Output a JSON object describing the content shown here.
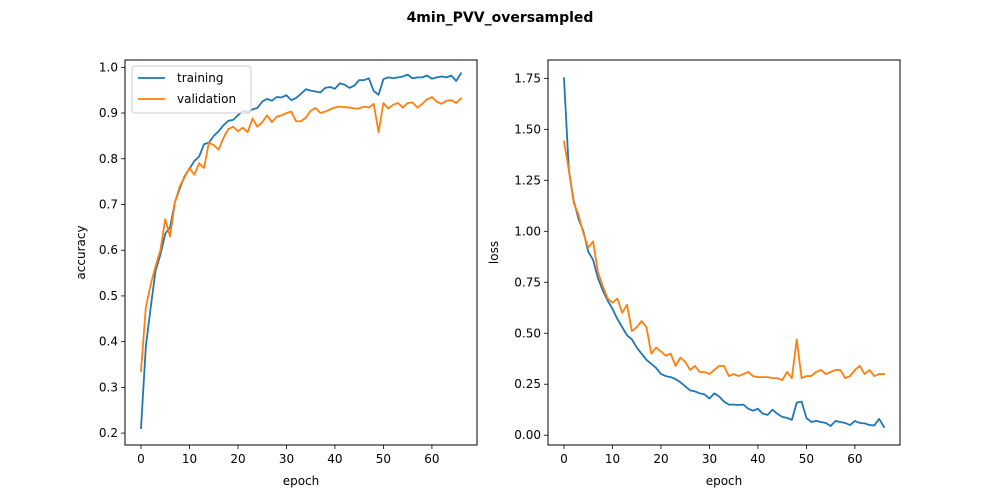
{
  "figure_title": "4min_PVV_oversampled",
  "colors": {
    "training": "#1f77b4",
    "validation": "#ff7f0e"
  },
  "chart_data": [
    {
      "type": "line",
      "xlabel": "epoch",
      "ylabel": "accuracy",
      "xlim": [
        -3.3,
        69.3
      ],
      "ylim": [
        0.174,
        1.016
      ],
      "xticks": [
        0,
        10,
        20,
        30,
        40,
        50,
        60
      ],
      "xtick_labels": [
        "0",
        "10",
        "20",
        "30",
        "40",
        "50",
        "60"
      ],
      "yticks": [
        0.2,
        0.3,
        0.4,
        0.5,
        0.6,
        0.7,
        0.8,
        0.9,
        1.0
      ],
      "ytick_labels": [
        "0.2",
        "0.3",
        "0.4",
        "0.5",
        "0.6",
        "0.7",
        "0.8",
        "0.9",
        "1.0"
      ],
      "legend": {
        "position": "upper-left",
        "entries": [
          "training",
          "validation"
        ]
      },
      "series": [
        {
          "name": "training",
          "color": "#1f77b4",
          "values": [
            0.211,
            0.39,
            0.475,
            0.555,
            0.59,
            0.636,
            0.65,
            0.705,
            0.735,
            0.762,
            0.778,
            0.795,
            0.805,
            0.832,
            0.835,
            0.85,
            0.86,
            0.873,
            0.883,
            0.885,
            0.895,
            0.905,
            0.903,
            0.908,
            0.911,
            0.925,
            0.931,
            0.927,
            0.935,
            0.934,
            0.939,
            0.928,
            0.933,
            0.942,
            0.952,
            0.949,
            0.947,
            0.945,
            0.955,
            0.957,
            0.953,
            0.965,
            0.962,
            0.955,
            0.96,
            0.972,
            0.972,
            0.976,
            0.948,
            0.94,
            0.974,
            0.978,
            0.976,
            0.978,
            0.98,
            0.984,
            0.976,
            0.978,
            0.978,
            0.982,
            0.975,
            0.978,
            0.98,
            0.978,
            0.982,
            0.97,
            0.987
          ]
        },
        {
          "name": "validation",
          "color": "#ff7f0e",
          "values": [
            0.336,
            0.475,
            0.525,
            0.565,
            0.6,
            0.668,
            0.63,
            0.705,
            0.74,
            0.76,
            0.78,
            0.765,
            0.79,
            0.78,
            0.835,
            0.83,
            0.82,
            0.845,
            0.865,
            0.87,
            0.86,
            0.868,
            0.858,
            0.888,
            0.87,
            0.88,
            0.895,
            0.88,
            0.892,
            0.895,
            0.9,
            0.903,
            0.882,
            0.882,
            0.89,
            0.905,
            0.911,
            0.9,
            0.903,
            0.908,
            0.912,
            0.914,
            0.913,
            0.912,
            0.91,
            0.91,
            0.914,
            0.912,
            0.92,
            0.858,
            0.922,
            0.91,
            0.918,
            0.922,
            0.912,
            0.922,
            0.923,
            0.912,
            0.92,
            0.93,
            0.935,
            0.925,
            0.92,
            0.927,
            0.928,
            0.922,
            0.932
          ]
        }
      ]
    },
    {
      "type": "line",
      "xlabel": "epoch",
      "ylabel": "loss",
      "xlim": [
        -3.3,
        69.3
      ],
      "ylim": [
        -0.048,
        1.84
      ],
      "xticks": [
        0,
        10,
        20,
        30,
        40,
        50,
        60
      ],
      "xtick_labels": [
        "0",
        "10",
        "20",
        "30",
        "40",
        "50",
        "60"
      ],
      "yticks": [
        0.0,
        0.25,
        0.5,
        0.75,
        1.0,
        1.25,
        1.5,
        1.75
      ],
      "ytick_labels": [
        "0.00",
        "0.25",
        "0.50",
        "0.75",
        "1.00",
        "1.25",
        "1.50",
        "1.75"
      ],
      "series": [
        {
          "name": "training",
          "color": "#1f77b4",
          "values": [
            1.75,
            1.3,
            1.15,
            1.06,
            1.0,
            0.9,
            0.86,
            0.77,
            0.71,
            0.66,
            0.62,
            0.57,
            0.53,
            0.49,
            0.47,
            0.43,
            0.4,
            0.37,
            0.35,
            0.33,
            0.3,
            0.29,
            0.285,
            0.275,
            0.26,
            0.24,
            0.22,
            0.215,
            0.205,
            0.2,
            0.18,
            0.205,
            0.19,
            0.165,
            0.15,
            0.15,
            0.148,
            0.15,
            0.13,
            0.12,
            0.13,
            0.105,
            0.1,
            0.125,
            0.105,
            0.09,
            0.085,
            0.075,
            0.16,
            0.165,
            0.085,
            0.065,
            0.07,
            0.065,
            0.06,
            0.045,
            0.07,
            0.065,
            0.06,
            0.05,
            0.07,
            0.06,
            0.058,
            0.05,
            0.048,
            0.08,
            0.04
          ]
        },
        {
          "name": "validation",
          "color": "#ff7f0e",
          "values": [
            1.44,
            1.3,
            1.14,
            1.08,
            0.99,
            0.92,
            0.95,
            0.8,
            0.73,
            0.67,
            0.65,
            0.67,
            0.6,
            0.64,
            0.51,
            0.53,
            0.56,
            0.53,
            0.4,
            0.43,
            0.41,
            0.39,
            0.4,
            0.34,
            0.38,
            0.36,
            0.32,
            0.34,
            0.31,
            0.31,
            0.3,
            0.32,
            0.34,
            0.34,
            0.29,
            0.3,
            0.29,
            0.3,
            0.31,
            0.29,
            0.285,
            0.285,
            0.285,
            0.28,
            0.28,
            0.27,
            0.31,
            0.28,
            0.47,
            0.28,
            0.29,
            0.29,
            0.31,
            0.32,
            0.3,
            0.31,
            0.32,
            0.32,
            0.28,
            0.29,
            0.32,
            0.34,
            0.3,
            0.32,
            0.29,
            0.3,
            0.3
          ]
        }
      ]
    }
  ]
}
